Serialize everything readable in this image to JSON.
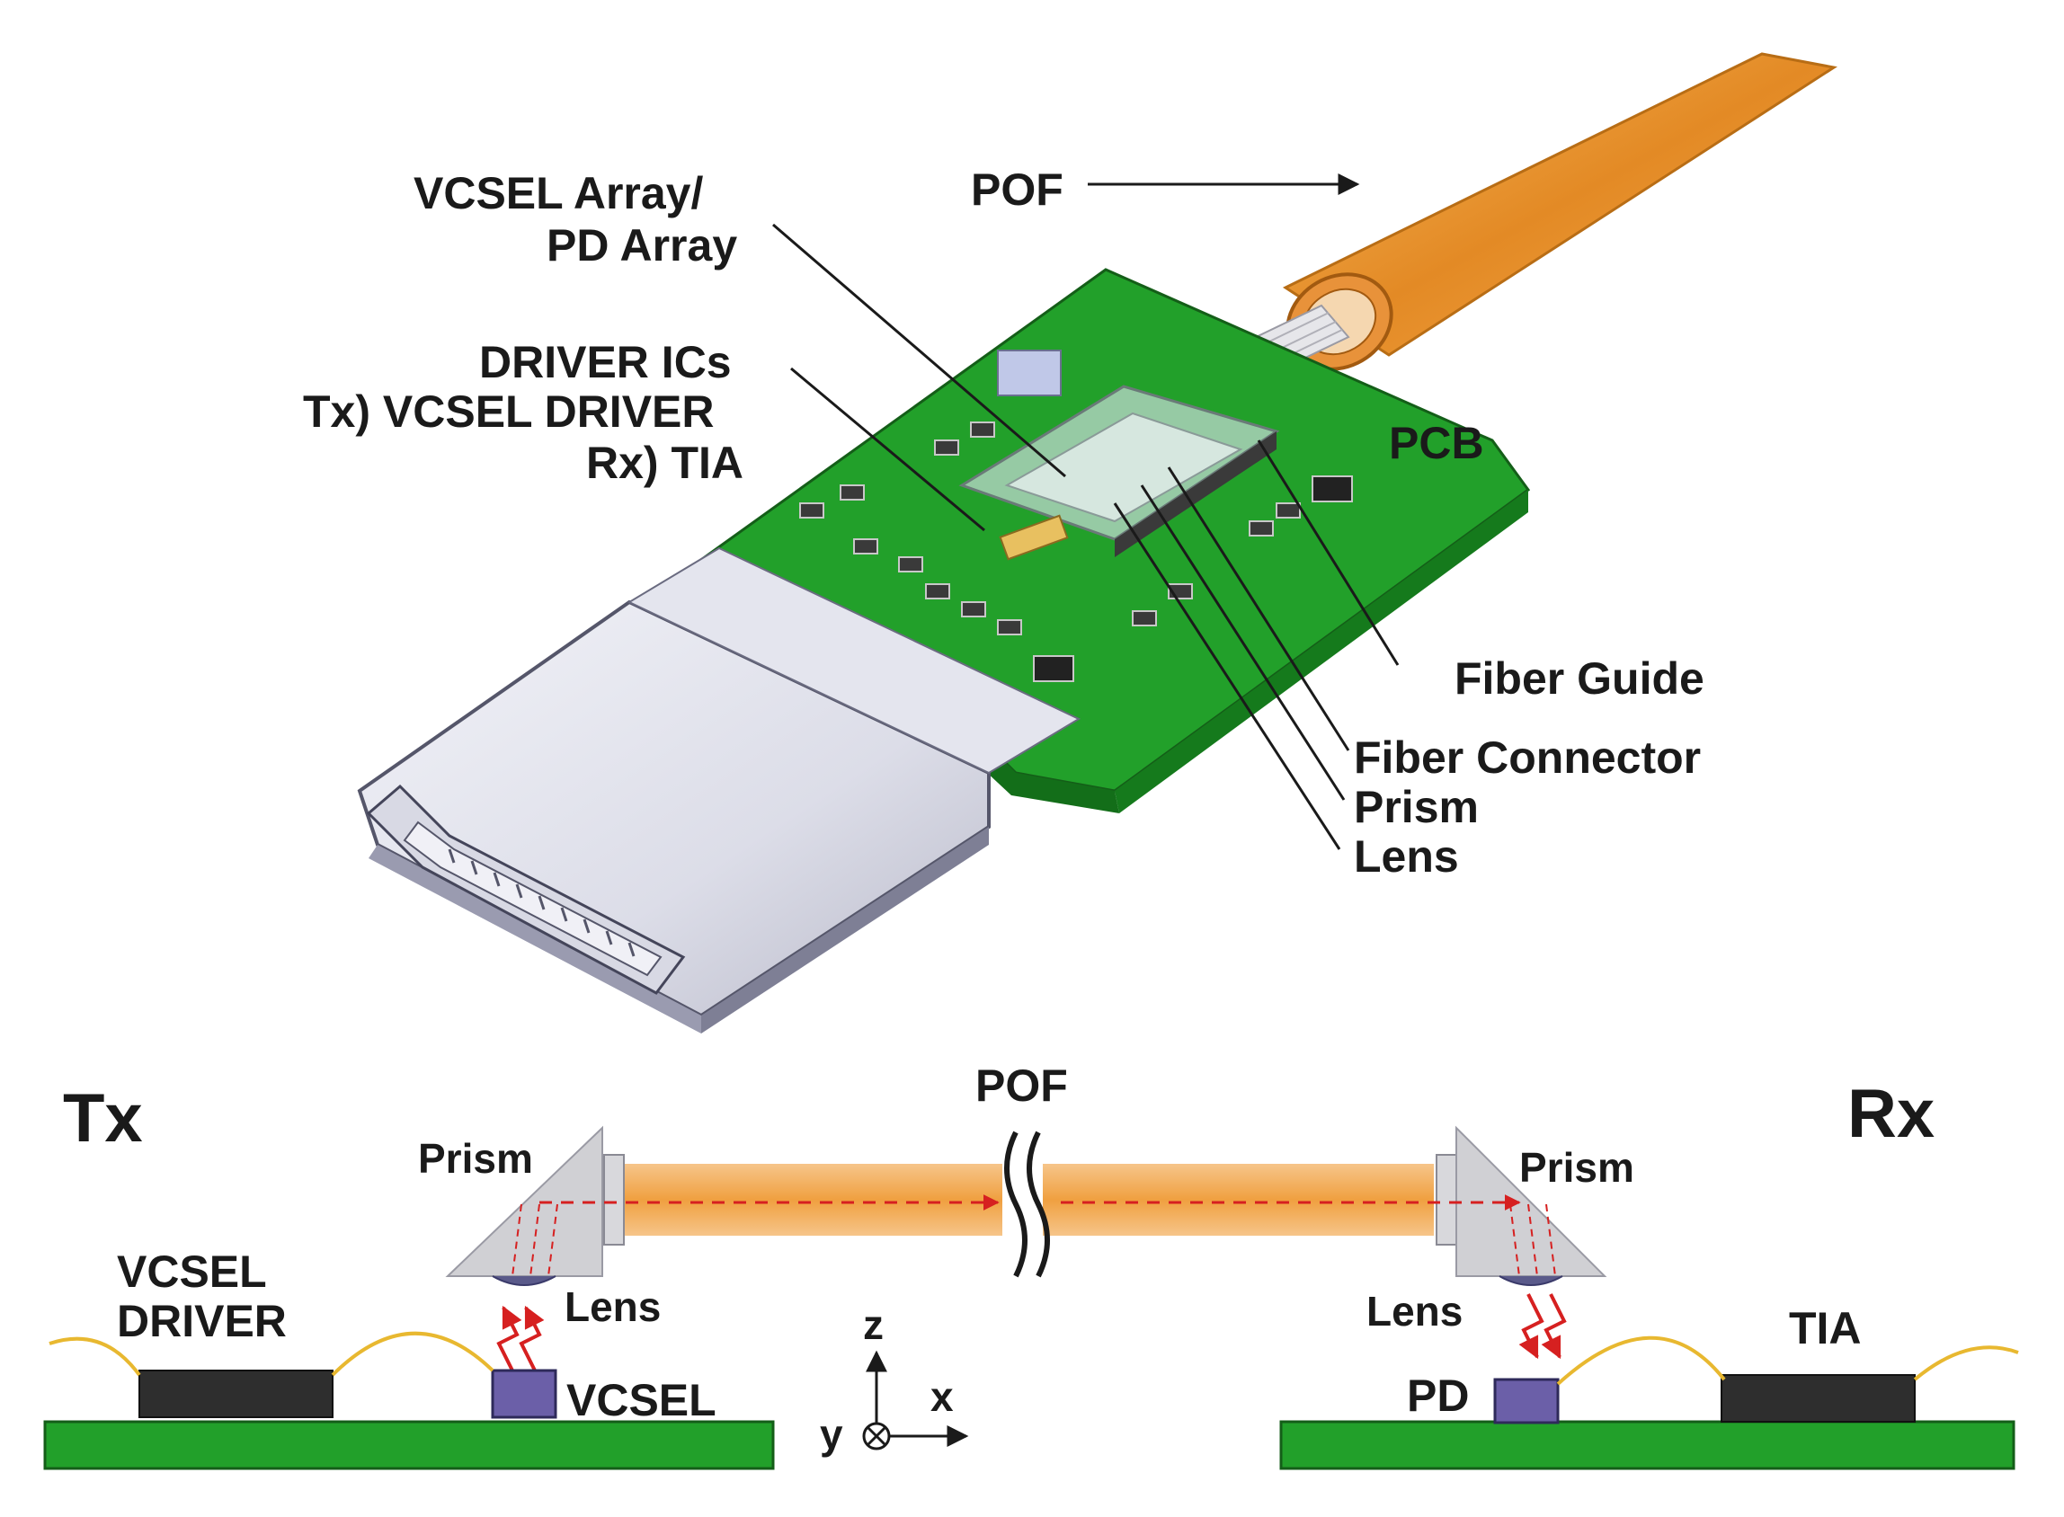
{
  "top_labels": {
    "pof": "POF",
    "vcsel_array_1": "VCSEL Array/",
    "vcsel_array_2": "PD Array",
    "driver_1": "DRIVER ICs",
    "driver_2": "Tx) VCSEL DRIVER",
    "driver_3": "Rx) TIA",
    "pcb": "PCB",
    "fiber_guide": "Fiber Guide",
    "fiber_connector": "Fiber Connector",
    "prism": "Prism",
    "lens": "Lens"
  },
  "bottom_labels": {
    "tx": "Tx",
    "rx": "Rx",
    "pof": "POF",
    "prism_left": "Prism",
    "prism_right": "Prism",
    "lens_left": "Lens",
    "lens_right": "Lens",
    "vcsel_driver_1": "VCSEL",
    "vcsel_driver_2": "DRIVER",
    "vcsel": "VCSEL",
    "pd": "PD",
    "tia": "TIA",
    "axis_z": "z",
    "axis_x": "x",
    "axis_y": "y"
  },
  "colors": {
    "pcb_green": "#22a02a",
    "fiber_orange": "#f0a040",
    "chip_dark": "#2e2e2e",
    "emitter_purple": "#6b5fa8",
    "beam_red": "#d62020",
    "wire_yellow": "#e8b830",
    "prism_gray": "#c8c8cc"
  }
}
